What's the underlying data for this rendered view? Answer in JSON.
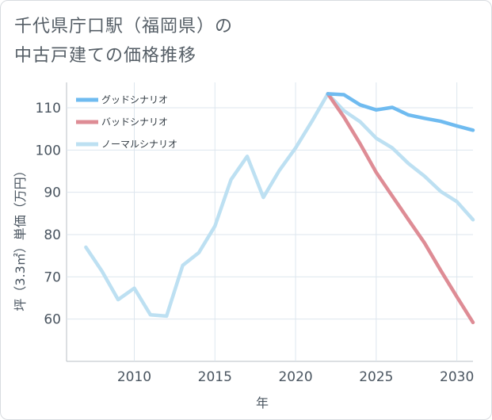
{
  "title_line1": "千代県庁口駅（福岡県）の",
  "title_line2": "中古戸建ての価格推移",
  "chart_data": {
    "type": "line",
    "xlabel": "年",
    "ylabel": "坪（3.3㎡）単価（万円）",
    "xlim": [
      2005.8,
      2031
    ],
    "ylim": [
      50,
      116
    ],
    "xticks": [
      2010,
      2015,
      2020,
      2025,
      2030
    ],
    "yticks": [
      60,
      70,
      80,
      90,
      100,
      110
    ],
    "grid": true,
    "legend_position": "top-left",
    "series": [
      {
        "name": "グッドシナリオ",
        "color": "#6fbbf0",
        "x": [
          2022,
          2023,
          2024,
          2025,
          2026,
          2027,
          2028,
          2029,
          2030,
          2031
        ],
        "y": [
          113.3,
          113.1,
          110.7,
          109.5,
          110.1,
          108.3,
          107.5,
          106.8,
          105.7,
          104.7
        ]
      },
      {
        "name": "バッドシナリオ",
        "color": "#de8c95",
        "x": [
          2022,
          2023,
          2024,
          2025,
          2026,
          2027,
          2028,
          2029,
          2030,
          2031
        ],
        "y": [
          113.3,
          107.8,
          101.5,
          94.7,
          89.1,
          83.5,
          78.0,
          71.5,
          65.3,
          59.2
        ]
      },
      {
        "name": "ノーマルシナリオ",
        "color": "#bde0f2",
        "x": [
          2007,
          2008,
          2009,
          2010,
          2011,
          2012,
          2013,
          2014,
          2015,
          2016,
          2017,
          2018,
          2019,
          2020,
          2021,
          2022,
          2023,
          2024,
          2025,
          2026,
          2027,
          2028,
          2029,
          2030,
          2031
        ],
        "y": [
          77.0,
          71.3,
          64.6,
          67.3,
          61.0,
          60.7,
          72.7,
          75.7,
          82.0,
          93.0,
          98.5,
          88.8,
          95.2,
          100.5,
          106.7,
          113.3,
          109.3,
          106.7,
          102.8,
          100.5,
          96.8,
          93.8,
          90.2,
          87.8,
          83.5
        ]
      }
    ]
  }
}
